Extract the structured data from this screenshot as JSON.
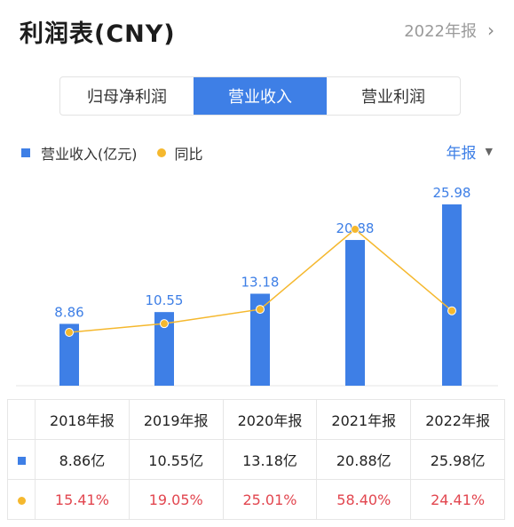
{
  "header": {
    "title": "利润表(CNY)",
    "report_label": "2022年报",
    "chevron_icon": "chevron-right-icon"
  },
  "tabs": [
    {
      "label": "归母净利润",
      "active": false
    },
    {
      "label": "营业收入",
      "active": true
    },
    {
      "label": "营业利润",
      "active": false
    }
  ],
  "legend": {
    "revenue_label": "营业收入(亿元)",
    "yoy_label": "同比"
  },
  "period_select": {
    "label": "年报",
    "caret_icon": "caret-down-icon"
  },
  "colors": {
    "accent": "#3e7fe6",
    "line": "#f5b82e",
    "negative_red": "#e2464f"
  },
  "chart_data": {
    "type": "bar",
    "categories": [
      "2018年报",
      "2019年报",
      "2020年报",
      "2021年报",
      "2022年报"
    ],
    "series": [
      {
        "name": "营业收入(亿元)",
        "type": "bar",
        "values": [
          8.86,
          10.55,
          13.18,
          20.88,
          25.98
        ]
      },
      {
        "name": "同比",
        "type": "line",
        "values": [
          15.41,
          19.05,
          25.01,
          58.4,
          24.41
        ]
      }
    ],
    "data_labels": [
      "8.86",
      "10.55",
      "13.18",
      "20.88",
      "25.98"
    ]
  },
  "table": {
    "headers": [
      "2018年报",
      "2019年报",
      "2020年报",
      "2021年报",
      "2022年报"
    ],
    "revenue": [
      "8.86亿",
      "10.55亿",
      "13.18亿",
      "20.88亿",
      "25.98亿"
    ],
    "yoy": [
      "15.41%",
      "19.05%",
      "25.01%",
      "58.40%",
      "24.41%"
    ]
  }
}
